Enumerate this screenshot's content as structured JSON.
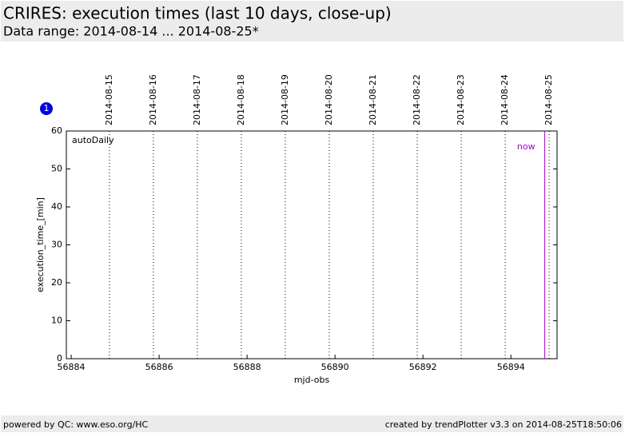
{
  "header": {
    "title": "CRIRES: execution times (last 10 days, close-up)",
    "subtitle": "Data range: 2014-08-14 ... 2014-08-25*"
  },
  "badge": "1",
  "chart_data": {
    "type": "scatter",
    "panel_label": "autoDaily",
    "xlabel": "mjd-obs",
    "ylabel": "execution_time_[min]",
    "xlim": [
      56883.89,
      56895.05
    ],
    "ylim": [
      0,
      60
    ],
    "xticks": [
      56884,
      56886,
      56888,
      56890,
      56892,
      56894
    ],
    "yticks": [
      0,
      10,
      20,
      30,
      40,
      50,
      60
    ],
    "x2ticks": [
      {
        "value": 56884.87,
        "label": "2014-08-15"
      },
      {
        "value": 56885.87,
        "label": "2014-08-16"
      },
      {
        "value": 56886.87,
        "label": "2014-08-17"
      },
      {
        "value": 56887.87,
        "label": "2014-08-18"
      },
      {
        "value": 56888.87,
        "label": "2014-08-19"
      },
      {
        "value": 56889.87,
        "label": "2014-08-20"
      },
      {
        "value": 56890.87,
        "label": "2014-08-21"
      },
      {
        "value": 56891.87,
        "label": "2014-08-22"
      },
      {
        "value": 56892.87,
        "label": "2014-08-23"
      },
      {
        "value": 56893.87,
        "label": "2014-08-24"
      },
      {
        "value": 56894.87,
        "label": "2014-08-25"
      }
    ],
    "now": {
      "value": 56894.77,
      "label": "now",
      "color": "#aa00cc"
    }
  },
  "footer": {
    "left": "powered by QC: www.eso.org/HC",
    "right": "created by trendPlotter v3.3 on 2014-08-25T18:50:06"
  }
}
